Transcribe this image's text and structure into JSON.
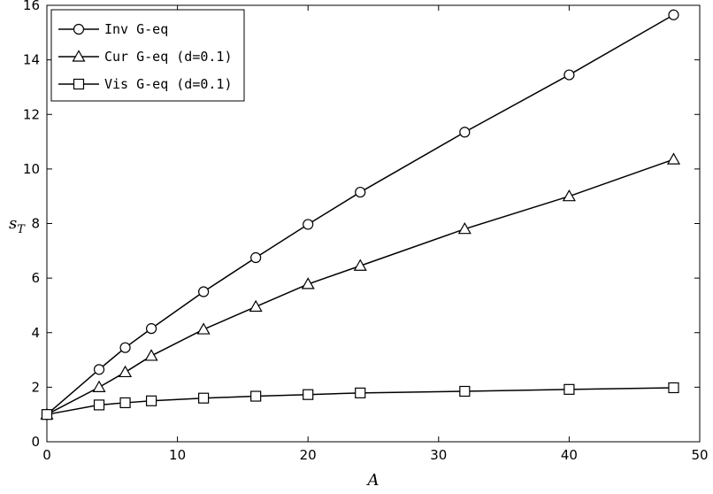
{
  "chart_data": {
    "type": "line",
    "xlabel": "A",
    "ylabel_base": "s",
    "ylabel_sub": "T",
    "xlim": [
      0,
      50
    ],
    "ylim": [
      0,
      16
    ],
    "xticks": [
      0,
      10,
      20,
      30,
      40,
      50
    ],
    "yticks": [
      0,
      2,
      4,
      6,
      8,
      10,
      12,
      14,
      16
    ],
    "grid": false,
    "legend_position": "top-left",
    "x": [
      0,
      4,
      6,
      8,
      12,
      16,
      20,
      24,
      32,
      40,
      48
    ],
    "series": [
      {
        "name": "Inv G-eq",
        "marker": "circle",
        "values": [
          1.0,
          2.65,
          3.45,
          4.15,
          5.5,
          6.75,
          7.97,
          9.15,
          11.35,
          13.45,
          15.65
        ]
      },
      {
        "name": "Cur G-eq (d=0.1)",
        "marker": "triangle",
        "values": [
          1.0,
          2.0,
          2.55,
          3.15,
          4.12,
          4.95,
          5.78,
          6.45,
          7.8,
          9.0,
          10.35
        ]
      },
      {
        "name": "Vis G-eq (d=0.1)",
        "marker": "square",
        "values": [
          1.0,
          1.35,
          1.43,
          1.5,
          1.6,
          1.67,
          1.73,
          1.79,
          1.85,
          1.92,
          1.98
        ]
      }
    ],
    "colors": {
      "line": "#000000",
      "marker_fill": "#ffffff",
      "background": "#ffffff"
    }
  }
}
